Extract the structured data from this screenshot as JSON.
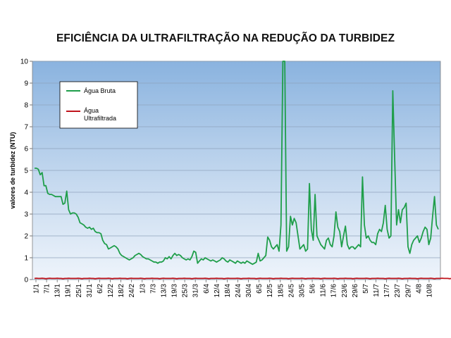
{
  "chart_data": {
    "type": "line",
    "title": "EFICIÊNCIA DA ULTRAFILTRAÇÃO NA REDUÇÃO DA TURBIDEZ",
    "ylabel": "valores de turbidez (NTU)",
    "xlabel": "",
    "ylim": [
      0,
      10
    ],
    "yticks": [
      "0",
      "1",
      "2",
      "3",
      "4",
      "5",
      "6",
      "7",
      "8",
      "9",
      "10"
    ],
    "xtick_labels": [
      "1/1",
      "7/1",
      "13/1",
      "19/1",
      "25/1",
      "31/1",
      "6/2",
      "12/2",
      "18/2",
      "24/2",
      "1/3",
      "7/3",
      "13/3",
      "19/3",
      "25/3",
      "31/3",
      "6/4",
      "12/4",
      "18/4",
      "24/4",
      "30/4",
      "6/5",
      "12/5",
      "18/5",
      "24/5",
      "30/5",
      "5/6",
      "11/6",
      "17/6",
      "23/6",
      "29/6",
      "5/7",
      "11/7",
      "17/7",
      "23/7",
      "29/7",
      "4/8",
      "10/8"
    ],
    "grid": "horizontal",
    "legend_position": "top-left",
    "background": "blue-gradient",
    "series": [
      {
        "name": "Água Bruta",
        "color": "#1f9e4a",
        "values": [
          5.1,
          5.1,
          5.05,
          4.8,
          4.9,
          4.3,
          4.3,
          3.95,
          3.9,
          3.9,
          3.85,
          3.8,
          3.8,
          3.8,
          3.8,
          3.45,
          3.5,
          4.05,
          3.2,
          3.0,
          3.05,
          3.05,
          3.0,
          2.85,
          2.6,
          2.55,
          2.5,
          2.4,
          2.35,
          2.4,
          2.3,
          2.35,
          2.2,
          2.15,
          2.15,
          2.1,
          1.8,
          1.65,
          1.6,
          1.4,
          1.45,
          1.5,
          1.55,
          1.5,
          1.4,
          1.2,
          1.1,
          1.05,
          1.0,
          0.95,
          0.9,
          0.95,
          1.0,
          1.1,
          1.15,
          1.2,
          1.15,
          1.05,
          1.0,
          0.95,
          0.95,
          0.9,
          0.85,
          0.8,
          0.8,
          0.75,
          0.8,
          0.8,
          0.85,
          1.0,
          0.95,
          1.05,
          0.95,
          1.1,
          1.2,
          1.1,
          1.15,
          1.1,
          1.0,
          0.95,
          0.9,
          0.95,
          0.9,
          1.05,
          1.3,
          1.25,
          0.75,
          0.85,
          0.95,
          0.9,
          1.0,
          0.95,
          0.9,
          0.85,
          0.9,
          0.85,
          0.8,
          0.85,
          0.9,
          1.0,
          0.95,
          0.85,
          0.8,
          0.9,
          0.85,
          0.8,
          0.75,
          0.85,
          0.8,
          0.75,
          0.8,
          0.75,
          0.85,
          0.8,
          0.75,
          0.7,
          0.75,
          0.8,
          1.2,
          0.85,
          0.9,
          1.0,
          1.1,
          1.95,
          1.8,
          1.5,
          1.4,
          1.5,
          1.6,
          1.3,
          2.5,
          10,
          10,
          1.3,
          1.5,
          2.9,
          2.5,
          2.8,
          2.6,
          2.0,
          1.4,
          1.5,
          1.6,
          1.3,
          1.4,
          4.4,
          2.3,
          1.8,
          3.9,
          2.0,
          1.8,
          1.6,
          1.5,
          1.4,
          1.8,
          1.9,
          1.6,
          1.5,
          2.0,
          3.1,
          2.4,
          2.2,
          1.5,
          2.0,
          2.45,
          1.6,
          1.4,
          1.5,
          1.5,
          1.4,
          1.5,
          1.6,
          1.5,
          4.7,
          2.5,
          1.9,
          2.0,
          1.8,
          1.7,
          1.7,
          1.6,
          2.1,
          2.3,
          2.2,
          2.6,
          3.4,
          2.3,
          1.9,
          2.0,
          8.65,
          5.5,
          2.5,
          3.2,
          2.6,
          3.2,
          3.3,
          3.5,
          1.5,
          1.2,
          1.6,
          1.8,
          1.9,
          2.0,
          1.7,
          1.9,
          2.2,
          2.4,
          2.3,
          1.6,
          1.9,
          2.9,
          3.8,
          2.5,
          2.3
        ]
      },
      {
        "name": "Água Ultrafiltrada",
        "color": "#c0141c",
        "values": [
          0.05,
          0.06,
          0.05,
          0.05,
          0.06,
          0.05,
          0.04,
          0.05,
          0.06,
          0.05,
          0.05,
          0.05,
          0.06,
          0.05,
          0.05,
          0.04,
          0.05,
          0.05,
          0.06,
          0.05,
          0.05,
          0.05,
          0.05,
          0.06,
          0.05,
          0.04,
          0.05,
          0.05,
          0.05,
          0.06,
          0.05,
          0.05,
          0.04,
          0.05,
          0.06,
          0.05,
          0.05,
          0.05,
          0.05,
          0.06,
          0.05,
          0.04,
          0.05,
          0.05,
          0.05,
          0.06,
          0.05,
          0.05,
          0.05,
          0.04,
          0.05,
          0.06,
          0.05,
          0.05,
          0.05,
          0.05,
          0.06,
          0.05,
          0.04,
          0.05,
          0.05,
          0.05,
          0.06,
          0.05,
          0.05,
          0.05,
          0.04,
          0.05,
          0.06,
          0.05,
          0.05,
          0.05,
          0.05,
          0.06,
          0.05,
          0.04,
          0.05,
          0.05,
          0.05,
          0.06,
          0.05,
          0.05,
          0.05,
          0.04,
          0.05,
          0.06,
          0.05,
          0.05,
          0.05,
          0.05,
          0.06,
          0.05,
          0.04,
          0.05,
          0.05,
          0.05,
          0.06,
          0.05,
          0.05,
          0.05,
          0.04,
          0.05,
          0.06,
          0.05,
          0.05,
          0.05,
          0.05,
          0.06,
          0.05,
          0.04,
          0.05,
          0.05,
          0.05,
          0.06,
          0.05,
          0.05,
          0.05,
          0.04,
          0.05,
          0.06,
          0.05,
          0.05,
          0.05,
          0.05,
          0.06,
          0.05,
          0.04,
          0.05,
          0.05,
          0.05,
          0.06,
          0.05,
          0.05,
          0.05,
          0.04,
          0.05,
          0.06,
          0.05,
          0.05,
          0.05,
          0.05,
          0.06,
          0.05,
          0.04,
          0.05,
          0.05,
          0.05,
          0.06,
          0.05,
          0.05,
          0.05,
          0.04,
          0.05,
          0.06,
          0.05,
          0.05,
          0.05,
          0.05,
          0.06,
          0.05,
          0.04,
          0.05,
          0.05,
          0.05,
          0.06,
          0.05,
          0.05,
          0.05,
          0.04,
          0.05,
          0.06,
          0.05,
          0.05,
          0.05,
          0.05,
          0.06,
          0.05,
          0.04,
          0.05,
          0.05,
          0.05,
          0.06,
          0.05,
          0.05,
          0.05,
          0.04,
          0.05,
          0.06,
          0.05,
          0.05,
          0.05,
          0.05,
          0.06,
          0.05,
          0.04,
          0.05,
          0.05,
          0.05,
          0.06,
          0.05,
          0.05,
          0.05,
          0.04,
          0.05,
          0.06,
          0.05,
          0.05,
          0.05,
          0.05,
          0.06,
          0.05,
          0.04,
          0.05,
          0.05,
          0.05,
          0.06,
          0.05,
          0.05,
          0.05,
          0.04,
          0.05,
          0.06,
          0.05,
          0.05,
          0.05,
          0.05,
          0.06,
          0.05
        ]
      }
    ]
  }
}
